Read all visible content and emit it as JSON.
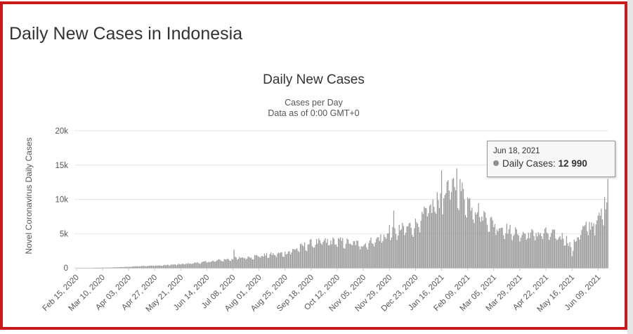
{
  "page": {
    "title": "Daily New Cases in Indonesia"
  },
  "colors": {
    "frame": "#c81a1a",
    "bar": "#9b9b9b",
    "grid": "#e6e6e6",
    "text": "#333333"
  },
  "chart_data": {
    "type": "bar",
    "title": "Daily New Cases",
    "subtitle": [
      "Cases per Day",
      "Data as of 0:00 GMT+0"
    ],
    "xlabel": "",
    "ylabel": "Novel Coronavirus Daily Cases",
    "ylim": [
      0,
      20000
    ],
    "yticks": [
      0,
      5000,
      10000,
      15000,
      20000
    ],
    "ytick_labels": [
      "0",
      "5k",
      "10k",
      "15k",
      "20k"
    ],
    "grid": true,
    "x_start": "2020-02-15",
    "x_end": "2021-06-18",
    "xtick_labels": [
      "Feb 15, 2020",
      "Mar 10, 2020",
      "Apr 03, 2020",
      "Apr 27, 2020",
      "May 21, 2020",
      "Jun 14, 2020",
      "Jul 08, 2020",
      "Aug 01, 2020",
      "Aug 25, 2020",
      "Sep 18, 2020",
      "Oct 12, 2020",
      "Nov 05, 2020",
      "Nov 29, 2020",
      "Dec 23, 2020",
      "Jan 16, 2021",
      "Feb 09, 2021",
      "Mar 05, 2021",
      "Mar 29, 2021",
      "Apr 22, 2021",
      "May 16, 2021",
      "Jun 09, 2021"
    ],
    "series": [
      {
        "name": "Daily Cases",
        "trend": [
          [
            "2020-02-15",
            0
          ],
          [
            "2020-03-01",
            0
          ],
          [
            "2020-03-15",
            40
          ],
          [
            "2020-04-01",
            150
          ],
          [
            "2020-04-15",
            300
          ],
          [
            "2020-05-01",
            350
          ],
          [
            "2020-05-21",
            550
          ],
          [
            "2020-06-14",
            900
          ],
          [
            "2020-07-08",
            1400
          ],
          [
            "2020-08-01",
            1800
          ],
          [
            "2020-08-25",
            2200
          ],
          [
            "2020-09-18",
            3700
          ],
          [
            "2020-10-12",
            4000
          ],
          [
            "2020-11-05",
            3500
          ],
          [
            "2020-11-29",
            5000
          ],
          [
            "2020-12-23",
            6500
          ],
          [
            "2021-01-16",
            10500
          ],
          [
            "2021-01-30",
            12500
          ],
          [
            "2021-02-09",
            10000
          ],
          [
            "2021-03-05",
            6500
          ],
          [
            "2021-03-29",
            5000
          ],
          [
            "2021-04-22",
            5200
          ],
          [
            "2021-05-10",
            4500
          ],
          [
            "2021-05-16",
            3000
          ],
          [
            "2021-05-24",
            5500
          ],
          [
            "2021-06-09",
            7000
          ],
          [
            "2021-06-16",
            9500
          ],
          [
            "2021-06-18",
            12990
          ]
        ],
        "peaks": [
          [
            "2020-07-09",
            2657
          ],
          [
            "2020-11-29",
            6267
          ],
          [
            "2020-12-03",
            8369
          ],
          [
            "2021-01-16",
            14224
          ],
          [
            "2021-01-30",
            14518
          ],
          [
            "2021-01-27",
            13094
          ],
          [
            "2021-01-21",
            12568
          ],
          [
            "2021-05-16",
            1700
          ]
        ]
      }
    ],
    "tooltip": {
      "date": "Jun 18, 2021",
      "label": "Daily Cases:",
      "value": "12 990"
    }
  }
}
